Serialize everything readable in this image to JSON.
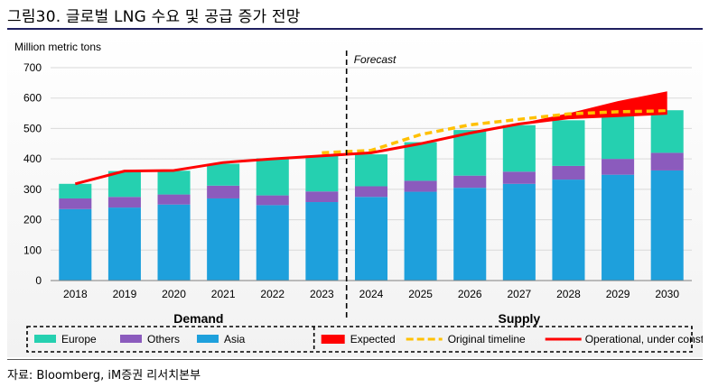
{
  "page": {
    "title": "그림30. 글로벌 LNG 수요 및 공급 증가 전망",
    "source": "자료: Bloomberg, iM증권 리서치본부"
  },
  "chart_data": {
    "type": "bar",
    "ylabel": "Million metric tons",
    "ylim": [
      0,
      700
    ],
    "yticks": [
      0,
      100,
      200,
      300,
      400,
      500,
      600,
      700
    ],
    "categories": [
      "2018",
      "2019",
      "2020",
      "2021",
      "2022",
      "2023",
      "2024",
      "2025",
      "2026",
      "2027",
      "2028",
      "2029",
      "2030"
    ],
    "forecast_label": "Forecast",
    "forecast_start": "2024",
    "section_labels": {
      "demand": "Demand",
      "supply": "Supply"
    },
    "stacked_series": [
      {
        "name": "Asia",
        "color": "#1ea0dc",
        "values": [
          235,
          240,
          250,
          270,
          248,
          258,
          275,
          292,
          305,
          318,
          332,
          348,
          362
        ]
      },
      {
        "name": "Others",
        "color": "#8b5bbd",
        "values": [
          35,
          35,
          33,
          42,
          32,
          35,
          35,
          36,
          40,
          40,
          45,
          52,
          58
        ]
      },
      {
        "name": "Europe",
        "color": "#25d0b0",
        "values": [
          48,
          85,
          78,
          72,
          122,
          118,
          105,
          127,
          150,
          153,
          150,
          150,
          140
        ]
      }
    ],
    "line_series": [
      {
        "name": "Operational, under construction",
        "color": "#ff0000",
        "x": [
          "2018",
          "2019",
          "2020",
          "2021",
          "2022",
          "2023",
          "2024",
          "2025",
          "2026",
          "2027",
          "2028",
          "2029",
          "2030"
        ],
        "values": [
          318,
          360,
          362,
          388,
          400,
          410,
          420,
          450,
          485,
          515,
          535,
          542,
          550
        ]
      },
      {
        "name": "Original timeline",
        "color": "#ffc000",
        "style": "dashed",
        "x": [
          "2023",
          "2024",
          "2025",
          "2026",
          "2027",
          "2028",
          "2029",
          "2030"
        ],
        "values": [
          420,
          428,
          480,
          512,
          530,
          548,
          555,
          558
        ]
      },
      {
        "name": "Expected",
        "color": "#ff0000",
        "style": "band",
        "x": [
          "2026",
          "2027",
          "2028",
          "2029",
          "2030"
        ],
        "upper": [
          485,
          516,
          550,
          590,
          622
        ],
        "lower": [
          485,
          515,
          535,
          542,
          550
        ]
      }
    ],
    "legend": {
      "demand": [
        "Europe",
        "Others",
        "Asia"
      ],
      "supply": [
        "Expected",
        "Original timeline",
        "Operational, under construction"
      ]
    },
    "grid": true
  }
}
